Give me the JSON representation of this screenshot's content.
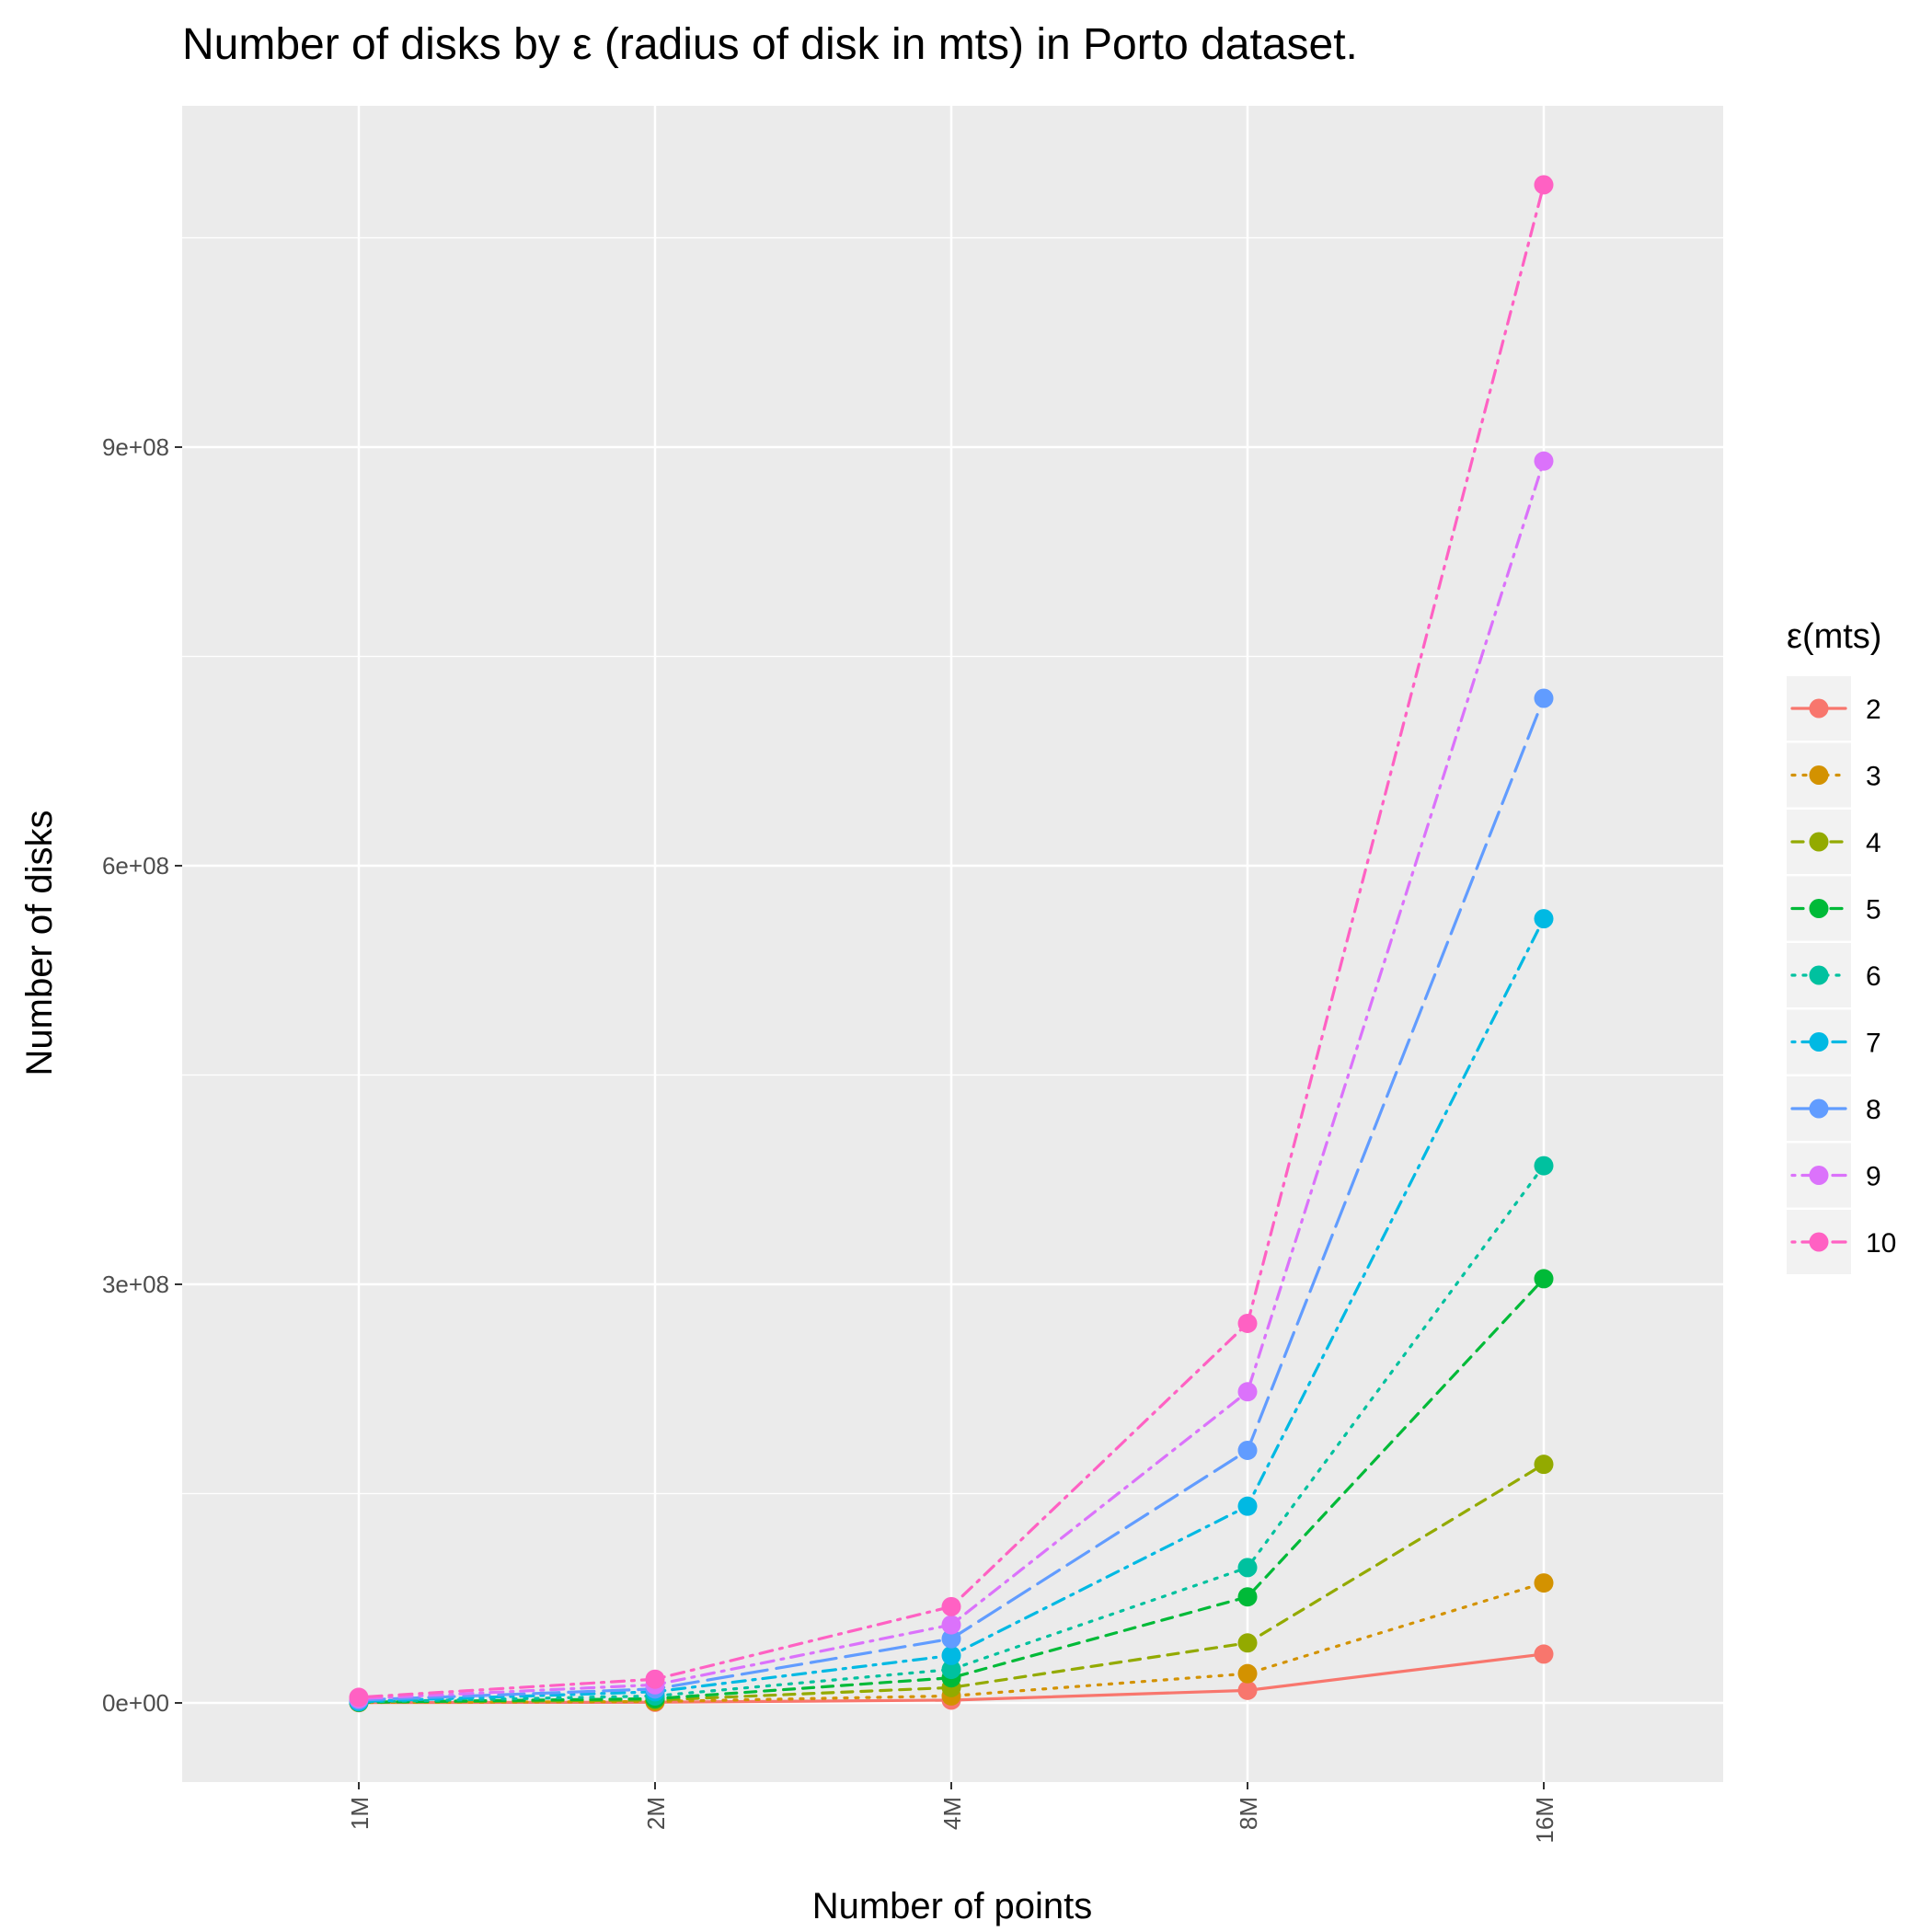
{
  "chart_data": {
    "type": "line",
    "title": "Number of disks by ε (radius of disk in mts) in Porto dataset.",
    "xlabel": "Number of points",
    "ylabel": "Number of disks",
    "categories": [
      "1M",
      "2M",
      "4M",
      "8M",
      "16M"
    ],
    "y_ticks": [
      {
        "value": 0,
        "label": "0e+00"
      },
      {
        "value": 300000000,
        "label": "3e+08"
      },
      {
        "value": 600000000,
        "label": "6e+08"
      },
      {
        "value": 900000000,
        "label": "9e+08"
      }
    ],
    "ylim": [
      -55000000,
      1140000000
    ],
    "grid": true,
    "legend": {
      "title": "ε(mts)",
      "placement": "right"
    },
    "series": [
      {
        "name": "2",
        "color": "#F8766D",
        "dash": "solid",
        "values": [
          200000,
          500000,
          2000000,
          9000000,
          35000000
        ]
      },
      {
        "name": "3",
        "color": "#D39200",
        "dash": "dotted",
        "values": [
          300000,
          1000000,
          5000000,
          21000000,
          86000000
        ]
      },
      {
        "name": "4",
        "color": "#93AA00",
        "dash": "dashed",
        "values": [
          400000,
          2000000,
          11000000,
          43000000,
          171000000
        ]
      },
      {
        "name": "5",
        "color": "#00BA38",
        "dash": "dashed",
        "values": [
          500000,
          3000000,
          18000000,
          76000000,
          304000000
        ]
      },
      {
        "name": "6",
        "color": "#00C19F",
        "dash": "dotted",
        "values": [
          700000,
          5000000,
          24000000,
          97000000,
          385000000
        ]
      },
      {
        "name": "7",
        "color": "#00B9E3",
        "dash": "dotdash",
        "values": [
          1000000,
          8000000,
          34000000,
          141000000,
          562000000
        ]
      },
      {
        "name": "8",
        "color": "#619CFF",
        "dash": "longdash",
        "values": [
          2000000,
          10000000,
          46000000,
          181000000,
          720000000
        ]
      },
      {
        "name": "9",
        "color": "#DB72FB",
        "dash": "dotdash",
        "values": [
          3000000,
          13000000,
          56000000,
          223000000,
          890000000
        ]
      },
      {
        "name": "10",
        "color": "#FF61C3",
        "dash": "dotdash",
        "values": [
          4000000,
          17000000,
          69000000,
          272000000,
          1088000000
        ]
      }
    ]
  }
}
